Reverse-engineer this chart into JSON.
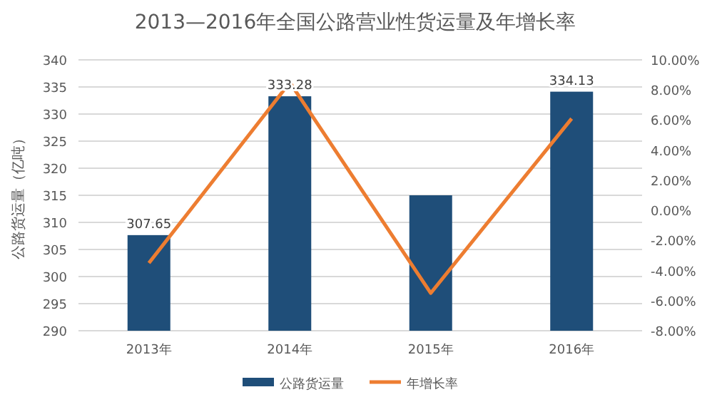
{
  "chart_data": {
    "type": "bar",
    "title": "2013—2016年全国公路营业性货运量及年增长率",
    "ylabel": "公路货运量（亿吨）",
    "categories": [
      "2013年",
      "2014年",
      "2015年",
      "2016年"
    ],
    "series": [
      {
        "name": "公路货运量",
        "color": "#1f4e79",
        "values": [
          307.65,
          333.28,
          315,
          334.13
        ],
        "value_labels": [
          "307.65",
          "333.28",
          null,
          "334.13"
        ]
      },
      {
        "name": "年增长率",
        "type": "line",
        "axis": "y2",
        "color": "#ed7d31",
        "values": [
          -3.5,
          8.5,
          -5.5,
          6.1
        ]
      }
    ],
    "ylim": [
      290,
      340
    ],
    "yticks": [
      290,
      295,
      300,
      305,
      310,
      315,
      320,
      325,
      330,
      335,
      340
    ],
    "y2lim": [
      -8,
      10
    ],
    "y2ticks": [
      {
        "value": -8,
        "label": "-8.00%"
      },
      {
        "value": -6,
        "label": "-6.00%"
      },
      {
        "value": -4,
        "label": "-4.00%"
      },
      {
        "value": -2,
        "label": "-2.00%"
      },
      {
        "value": 0,
        "label": "0.00%"
      },
      {
        "value": 2,
        "label": "2.00%"
      },
      {
        "value": 4,
        "label": "4.00%"
      },
      {
        "value": 6,
        "label": "6.00%"
      },
      {
        "value": 8,
        "label": "8.00%"
      },
      {
        "value": 10,
        "label": "10.00%"
      }
    ],
    "grid": "y",
    "legend": "bottom",
    "marker": "none",
    "line_style": "solid"
  }
}
